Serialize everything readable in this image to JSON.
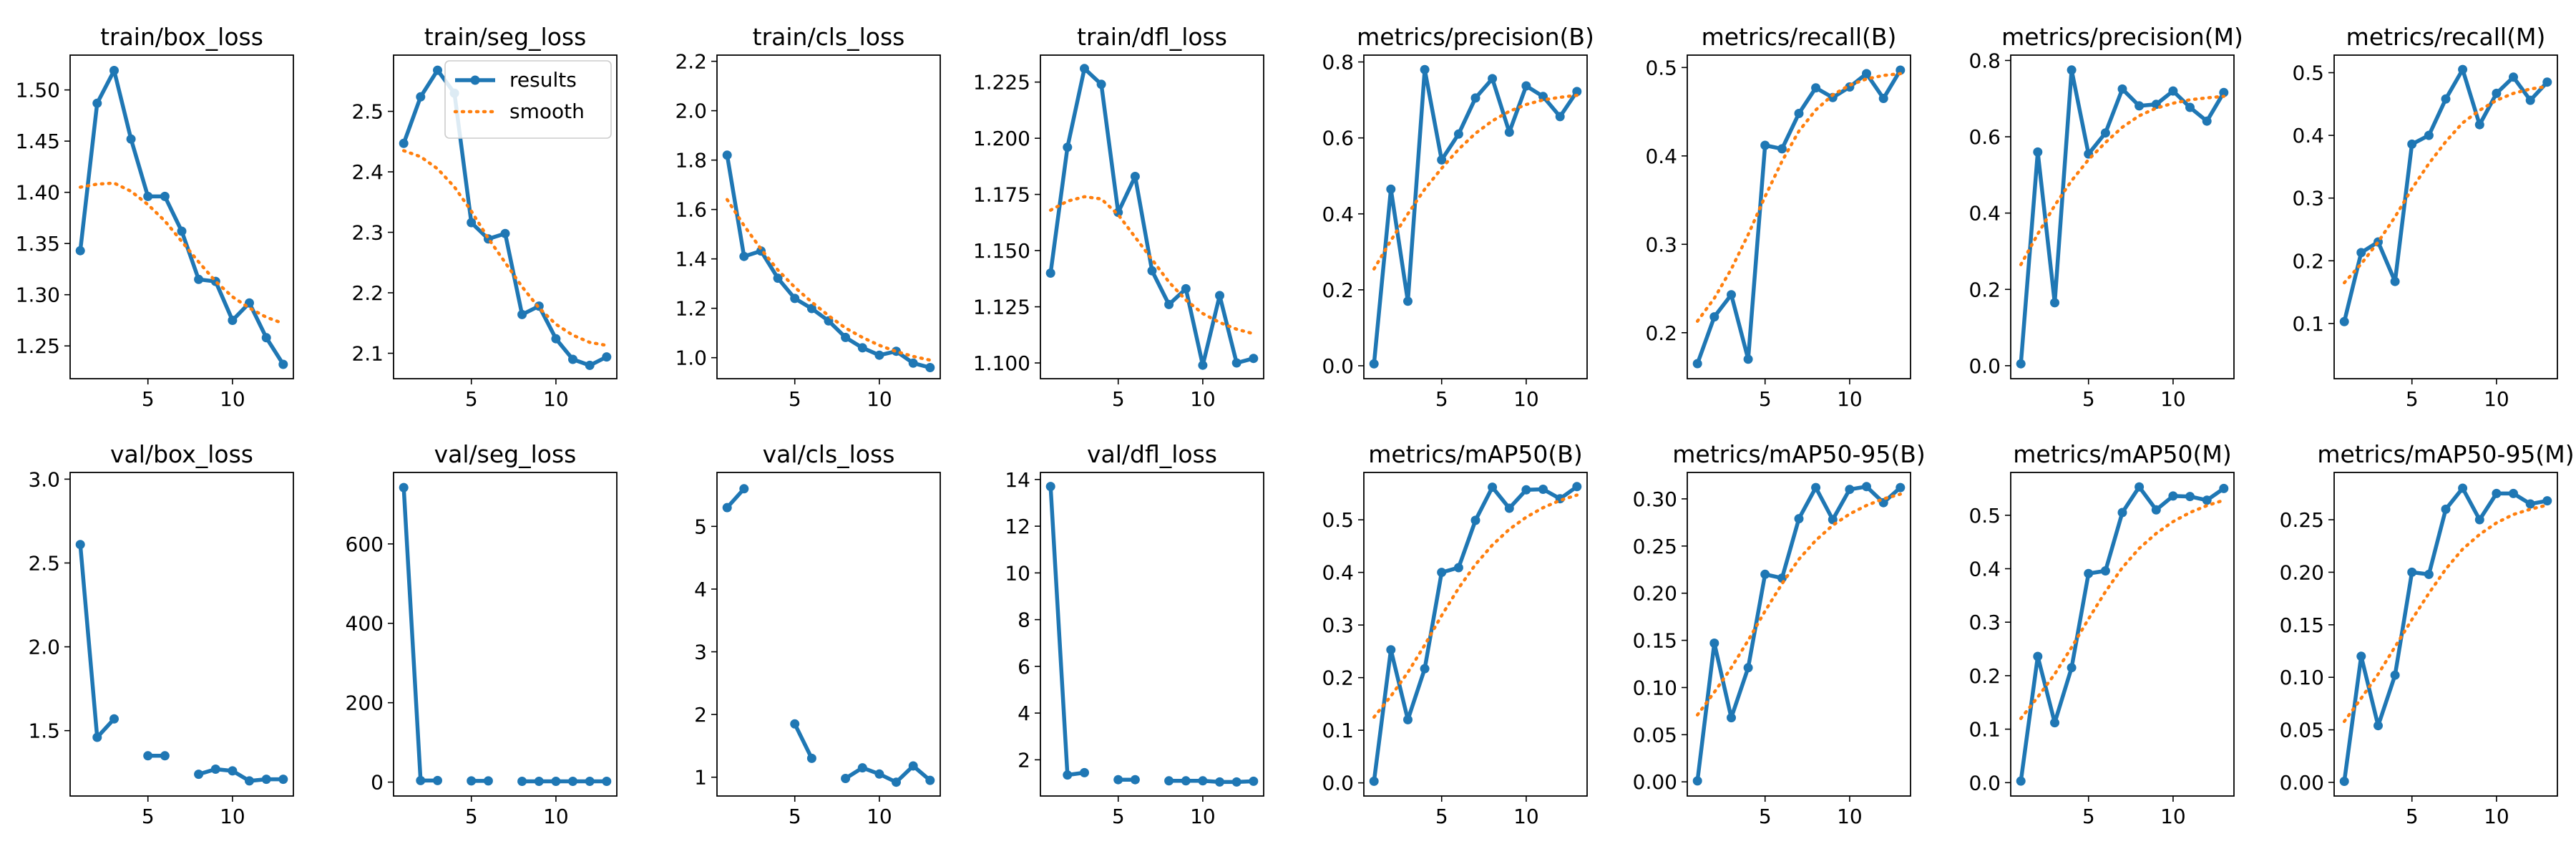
{
  "chart_data": [
    {
      "type": "line",
      "title": "train/box_loss",
      "x": [
        1,
        2,
        3,
        4,
        5,
        6,
        7,
        8,
        9,
        10,
        11,
        12,
        13
      ],
      "series": [
        {
          "name": "results",
          "values": [
            1.343,
            1.487,
            1.519,
            1.452,
            1.396,
            1.396,
            1.362,
            1.315,
            1.313,
            1.275,
            1.292,
            1.258,
            1.232
          ]
        },
        {
          "name": "smooth",
          "values": [
            1.405,
            1.408,
            1.409,
            1.401,
            1.388,
            1.372,
            1.352,
            1.332,
            1.313,
            1.298,
            1.287,
            1.278,
            1.272
          ]
        }
      ],
      "xticks": [
        5,
        10
      ],
      "yticks": [
        1.25,
        1.3,
        1.35,
        1.4,
        1.45,
        1.5
      ],
      "ytick_labels": [
        "1.25",
        "1.30",
        "1.35",
        "1.40",
        "1.45",
        "1.50"
      ],
      "xlim": [
        0.4,
        13.6
      ],
      "ylim": [
        1.218,
        1.534
      ]
    },
    {
      "type": "line",
      "title": "train/seg_loss",
      "x": [
        1,
        2,
        3,
        4,
        5,
        6,
        7,
        8,
        9,
        10,
        11,
        12,
        13
      ],
      "series": [
        {
          "name": "results",
          "values": [
            2.447,
            2.524,
            2.568,
            2.53,
            2.316,
            2.289,
            2.298,
            2.164,
            2.178,
            2.124,
            2.09,
            2.08,
            2.094
          ]
        },
        {
          "name": "smooth",
          "values": [
            2.435,
            2.425,
            2.405,
            2.375,
            2.335,
            2.29,
            2.25,
            2.21,
            2.175,
            2.148,
            2.13,
            2.118,
            2.113
          ]
        }
      ],
      "xticks": [
        5,
        10
      ],
      "yticks": [
        2.1,
        2.2,
        2.3,
        2.4,
        2.5
      ],
      "ytick_labels": [
        "2.1",
        "2.2",
        "2.3",
        "2.4",
        "2.5"
      ],
      "xlim": [
        0.4,
        13.6
      ],
      "ylim": [
        2.058,
        2.593
      ],
      "legend": {
        "position": "top-right",
        "entries": [
          "results",
          "smooth"
        ]
      }
    },
    {
      "type": "line",
      "title": "train/cls_loss",
      "x": [
        1,
        2,
        3,
        4,
        5,
        6,
        7,
        8,
        9,
        10,
        11,
        12,
        13
      ],
      "series": [
        {
          "name": "results",
          "values": [
            1.82,
            1.41,
            1.432,
            1.322,
            1.24,
            1.199,
            1.149,
            1.082,
            1.04,
            1.01,
            1.026,
            0.978,
            0.96
          ]
        },
        {
          "name": "smooth",
          "values": [
            1.64,
            1.535,
            1.44,
            1.355,
            1.285,
            1.225,
            1.17,
            1.12,
            1.082,
            1.05,
            1.025,
            1.005,
            0.99
          ]
        }
      ],
      "xticks": [
        5,
        10
      ],
      "yticks": [
        1.0,
        1.2,
        1.4,
        1.6,
        1.8,
        2.0,
        2.2
      ],
      "ytick_labels": [
        "1.0",
        "1.2",
        "1.4",
        "1.6",
        "1.8",
        "2.0",
        "2.2"
      ],
      "xlim": [
        0.4,
        13.6
      ],
      "ylim": [
        0.915,
        2.225
      ]
    },
    {
      "type": "line",
      "title": "train/dfl_loss",
      "x": [
        1,
        2,
        3,
        4,
        5,
        6,
        7,
        8,
        9,
        10,
        11,
        12,
        13
      ],
      "series": [
        {
          "name": "results",
          "values": [
            1.14,
            1.196,
            1.231,
            1.224,
            1.167,
            1.183,
            1.141,
            1.126,
            1.133,
            1.099,
            1.13,
            1.1,
            1.102
          ]
        },
        {
          "name": "smooth",
          "values": [
            1.168,
            1.172,
            1.174,
            1.173,
            1.166,
            1.156,
            1.146,
            1.136,
            1.128,
            1.122,
            1.118,
            1.115,
            1.113
          ]
        }
      ],
      "xticks": [
        5,
        10
      ],
      "yticks": [
        1.1,
        1.125,
        1.15,
        1.175,
        1.2,
        1.225
      ],
      "ytick_labels": [
        "1.100",
        "1.125",
        "1.150",
        "1.175",
        "1.200",
        "1.225"
      ],
      "xlim": [
        0.4,
        13.6
      ],
      "ylim": [
        1.093,
        1.237
      ]
    },
    {
      "type": "line",
      "title": "metrics/precision(B)",
      "x": [
        1,
        2,
        3,
        4,
        5,
        6,
        7,
        8,
        9,
        10,
        11,
        12,
        13
      ],
      "series": [
        {
          "name": "results",
          "values": [
            0.005,
            0.465,
            0.17,
            0.78,
            0.542,
            0.61,
            0.705,
            0.756,
            0.615,
            0.737,
            0.709,
            0.656,
            0.722
          ]
        },
        {
          "name": "smooth",
          "values": [
            0.255,
            0.33,
            0.4,
            0.465,
            0.52,
            0.57,
            0.612,
            0.645,
            0.67,
            0.688,
            0.7,
            0.707,
            0.712
          ]
        }
      ],
      "xticks": [
        5,
        10
      ],
      "yticks": [
        0.0,
        0.2,
        0.4,
        0.6,
        0.8
      ],
      "ytick_labels": [
        "0.0",
        "0.2",
        "0.4",
        "0.6",
        "0.8"
      ],
      "xlim": [
        0.4,
        13.6
      ],
      "ylim": [
        -0.034,
        0.818
      ]
    },
    {
      "type": "line",
      "title": "metrics/recall(B)",
      "x": [
        1,
        2,
        3,
        4,
        5,
        6,
        7,
        8,
        9,
        10,
        11,
        12,
        13
      ],
      "series": [
        {
          "name": "results",
          "values": [
            0.165,
            0.218,
            0.243,
            0.17,
            0.412,
            0.408,
            0.448,
            0.477,
            0.466,
            0.478,
            0.493,
            0.465,
            0.497
          ]
        },
        {
          "name": "smooth",
          "values": [
            0.213,
            0.239,
            0.272,
            0.311,
            0.354,
            0.394,
            0.428,
            0.452,
            0.469,
            0.48,
            0.487,
            0.491,
            0.493
          ]
        }
      ],
      "xticks": [
        5,
        10
      ],
      "yticks": [
        0.2,
        0.3,
        0.4,
        0.5
      ],
      "ytick_labels": [
        "0.2",
        "0.3",
        "0.4",
        "0.5"
      ],
      "xlim": [
        0.4,
        13.6
      ],
      "ylim": [
        0.148,
        0.514
      ]
    },
    {
      "type": "line",
      "title": "metrics/precision(M)",
      "x": [
        1,
        2,
        3,
        4,
        5,
        6,
        7,
        8,
        9,
        10,
        11,
        12,
        13
      ],
      "series": [
        {
          "name": "results",
          "values": [
            0.005,
            0.56,
            0.165,
            0.775,
            0.555,
            0.61,
            0.725,
            0.681,
            0.685,
            0.72,
            0.677,
            0.641,
            0.716
          ]
        },
        {
          "name": "smooth",
          "values": [
            0.265,
            0.345,
            0.42,
            0.485,
            0.54,
            0.585,
            0.625,
            0.655,
            0.675,
            0.688,
            0.697,
            0.702,
            0.706
          ]
        }
      ],
      "xticks": [
        5,
        10
      ],
      "yticks": [
        0.0,
        0.2,
        0.4,
        0.6,
        0.8
      ],
      "ytick_labels": [
        "0.0",
        "0.2",
        "0.4",
        "0.6",
        "0.8"
      ],
      "xlim": [
        0.4,
        13.6
      ],
      "ylim": [
        -0.034,
        0.814
      ]
    },
    {
      "type": "line",
      "title": "metrics/recall(M)",
      "x": [
        1,
        2,
        3,
        4,
        5,
        6,
        7,
        8,
        9,
        10,
        11,
        12,
        13
      ],
      "series": [
        {
          "name": "results",
          "values": [
            0.103,
            0.213,
            0.23,
            0.167,
            0.386,
            0.4,
            0.458,
            0.505,
            0.417,
            0.467,
            0.493,
            0.456,
            0.485
          ]
        },
        {
          "name": "smooth",
          "values": [
            0.165,
            0.195,
            0.23,
            0.27,
            0.315,
            0.355,
            0.39,
            0.42,
            0.44,
            0.456,
            0.467,
            0.474,
            0.478
          ]
        }
      ],
      "xticks": [
        5,
        10
      ],
      "yticks": [
        0.1,
        0.2,
        0.3,
        0.4,
        0.5
      ],
      "ytick_labels": [
        "0.1",
        "0.2",
        "0.3",
        "0.4",
        "0.5"
      ],
      "xlim": [
        0.4,
        13.6
      ],
      "ylim": [
        0.012,
        0.528
      ]
    },
    {
      "type": "line",
      "title": "val/box_loss",
      "x": [
        1,
        2,
        3,
        4,
        5,
        6,
        7,
        8,
        9,
        10,
        11,
        12,
        13
      ],
      "series": [
        {
          "name": "results",
          "values": [
            2.61,
            1.46,
            1.57,
            null,
            1.35,
            1.35,
            null,
            1.24,
            1.27,
            1.26,
            1.2,
            1.21,
            1.21
          ]
        }
      ],
      "xticks": [
        5,
        10
      ],
      "yticks": [
        1.5,
        2.0,
        2.5,
        3.0
      ],
      "ytick_labels": [
        "1.5",
        "2.0",
        "2.5",
        "3.0"
      ],
      "xlim": [
        0.4,
        13.6
      ],
      "ylim": [
        1.11,
        3.04
      ]
    },
    {
      "type": "line",
      "title": "val/seg_loss",
      "x": [
        1,
        2,
        3,
        4,
        5,
        6,
        7,
        8,
        9,
        10,
        11,
        12,
        13
      ],
      "series": [
        {
          "name": "results",
          "values": [
            742,
            4,
            4,
            null,
            3,
            3,
            null,
            2,
            2,
            2,
            2,
            2,
            2
          ]
        }
      ],
      "xticks": [
        5,
        10
      ],
      "yticks": [
        0,
        200,
        400,
        600
      ],
      "ytick_labels": [
        "0",
        "200",
        "400",
        "600"
      ],
      "xlim": [
        0.4,
        13.6
      ],
      "ylim": [
        -35,
        780
      ]
    },
    {
      "type": "line",
      "title": "val/cls_loss",
      "x": [
        1,
        2,
        3,
        4,
        5,
        6,
        7,
        8,
        9,
        10,
        11,
        12,
        13
      ],
      "series": [
        {
          "name": "results",
          "values": [
            5.3,
            5.6,
            null,
            null,
            1.85,
            1.3,
            null,
            0.98,
            1.15,
            1.05,
            0.92,
            1.18,
            0.95
          ]
        }
      ],
      "xticks": [
        5,
        10
      ],
      "yticks": [
        1,
        2,
        3,
        4,
        5
      ],
      "ytick_labels": [
        "1",
        "2",
        "3",
        "4",
        "5"
      ],
      "xlim": [
        0.4,
        13.6
      ],
      "ylim": [
        0.7,
        5.86
      ]
    },
    {
      "type": "line",
      "title": "val/dfl_loss",
      "x": [
        1,
        2,
        3,
        4,
        5,
        6,
        7,
        8,
        9,
        10,
        11,
        12,
        13
      ],
      "series": [
        {
          "name": "results",
          "values": [
            13.7,
            1.35,
            1.45,
            null,
            1.15,
            1.15,
            null,
            1.1,
            1.1,
            1.1,
            1.05,
            1.05,
            1.08
          ]
        }
      ],
      "xticks": [
        5,
        10
      ],
      "yticks": [
        2,
        4,
        6,
        8,
        10,
        12,
        14
      ],
      "ytick_labels": [
        "2",
        "4",
        "6",
        "8",
        "10",
        "12",
        "14"
      ],
      "xlim": [
        0.4,
        13.6
      ],
      "ylim": [
        0.45,
        14.3
      ]
    },
    {
      "type": "line",
      "title": "metrics/mAP50(B)",
      "x": [
        1,
        2,
        3,
        4,
        5,
        6,
        7,
        8,
        9,
        10,
        11,
        12,
        13
      ],
      "series": [
        {
          "name": "results",
          "values": [
            0.003,
            0.253,
            0.12,
            0.217,
            0.4,
            0.409,
            0.499,
            0.562,
            0.522,
            0.557,
            0.558,
            0.54,
            0.563
          ]
        },
        {
          "name": "smooth",
          "values": [
            0.125,
            0.165,
            0.21,
            0.262,
            0.318,
            0.37,
            0.415,
            0.452,
            0.482,
            0.505,
            0.523,
            0.537,
            0.547
          ]
        }
      ],
      "xticks": [
        5,
        10
      ],
      "yticks": [
        0.0,
        0.1,
        0.2,
        0.3,
        0.4,
        0.5
      ],
      "ytick_labels": [
        "0.0",
        "0.1",
        "0.2",
        "0.3",
        "0.4",
        "0.5"
      ],
      "xlim": [
        0.4,
        13.6
      ],
      "ylim": [
        -0.025,
        0.59
      ]
    },
    {
      "type": "line",
      "title": "metrics/mAP50-95(B)",
      "x": [
        1,
        2,
        3,
        4,
        5,
        6,
        7,
        8,
        9,
        10,
        11,
        12,
        13
      ],
      "series": [
        {
          "name": "results",
          "values": [
            0.001,
            0.147,
            0.068,
            0.121,
            0.22,
            0.216,
            0.279,
            0.312,
            0.278,
            0.31,
            0.313,
            0.296,
            0.312
          ]
        },
        {
          "name": "smooth",
          "values": [
            0.071,
            0.095,
            0.121,
            0.15,
            0.181,
            0.21,
            0.236,
            0.256,
            0.272,
            0.284,
            0.293,
            0.3,
            0.305
          ]
        }
      ],
      "xticks": [
        5,
        10
      ],
      "yticks": [
        0.0,
        0.05,
        0.1,
        0.15,
        0.2,
        0.25,
        0.3
      ],
      "ytick_labels": [
        "0.00",
        "0.05",
        "0.10",
        "0.15",
        "0.20",
        "0.25",
        "0.30"
      ],
      "xlim": [
        0.4,
        13.6
      ],
      "ylim": [
        -0.015,
        0.328
      ]
    },
    {
      "type": "line",
      "title": "metrics/mAP50(M)",
      "x": [
        1,
        2,
        3,
        4,
        5,
        6,
        7,
        8,
        9,
        10,
        11,
        12,
        13
      ],
      "series": [
        {
          "name": "results",
          "values": [
            0.003,
            0.236,
            0.112,
            0.215,
            0.391,
            0.396,
            0.505,
            0.553,
            0.51,
            0.536,
            0.535,
            0.528,
            0.55
          ]
        },
        {
          "name": "smooth",
          "values": [
            0.12,
            0.16,
            0.203,
            0.253,
            0.306,
            0.357,
            0.402,
            0.438,
            0.466,
            0.488,
            0.505,
            0.518,
            0.528
          ]
        }
      ],
      "xticks": [
        5,
        10
      ],
      "yticks": [
        0.0,
        0.1,
        0.2,
        0.3,
        0.4,
        0.5
      ],
      "ytick_labels": [
        "0.0",
        "0.1",
        "0.2",
        "0.3",
        "0.4",
        "0.5"
      ],
      "xlim": [
        0.4,
        13.6
      ],
      "ylim": [
        -0.025,
        0.58
      ]
    },
    {
      "type": "line",
      "title": "metrics/mAP50-95(M)",
      "x": [
        1,
        2,
        3,
        4,
        5,
        6,
        7,
        8,
        9,
        10,
        11,
        12,
        13
      ],
      "series": [
        {
          "name": "results",
          "values": [
            0.001,
            0.12,
            0.054,
            0.102,
            0.2,
            0.198,
            0.26,
            0.28,
            0.25,
            0.275,
            0.275,
            0.265,
            0.268
          ]
        },
        {
          "name": "smooth",
          "values": [
            0.058,
            0.08,
            0.103,
            0.129,
            0.155,
            0.18,
            0.203,
            0.222,
            0.236,
            0.247,
            0.255,
            0.26,
            0.264
          ]
        }
      ],
      "xticks": [
        5,
        10
      ],
      "yticks": [
        0.0,
        0.05,
        0.1,
        0.15,
        0.2,
        0.25
      ],
      "ytick_labels": [
        "0.00",
        "0.05",
        "0.10",
        "0.15",
        "0.20",
        "0.25"
      ],
      "xlim": [
        0.4,
        13.6
      ],
      "ylim": [
        -0.013,
        0.295
      ]
    }
  ],
  "colors": {
    "results": "#1f77b4",
    "smooth": "#ff7f0e",
    "axes": "#000000"
  }
}
